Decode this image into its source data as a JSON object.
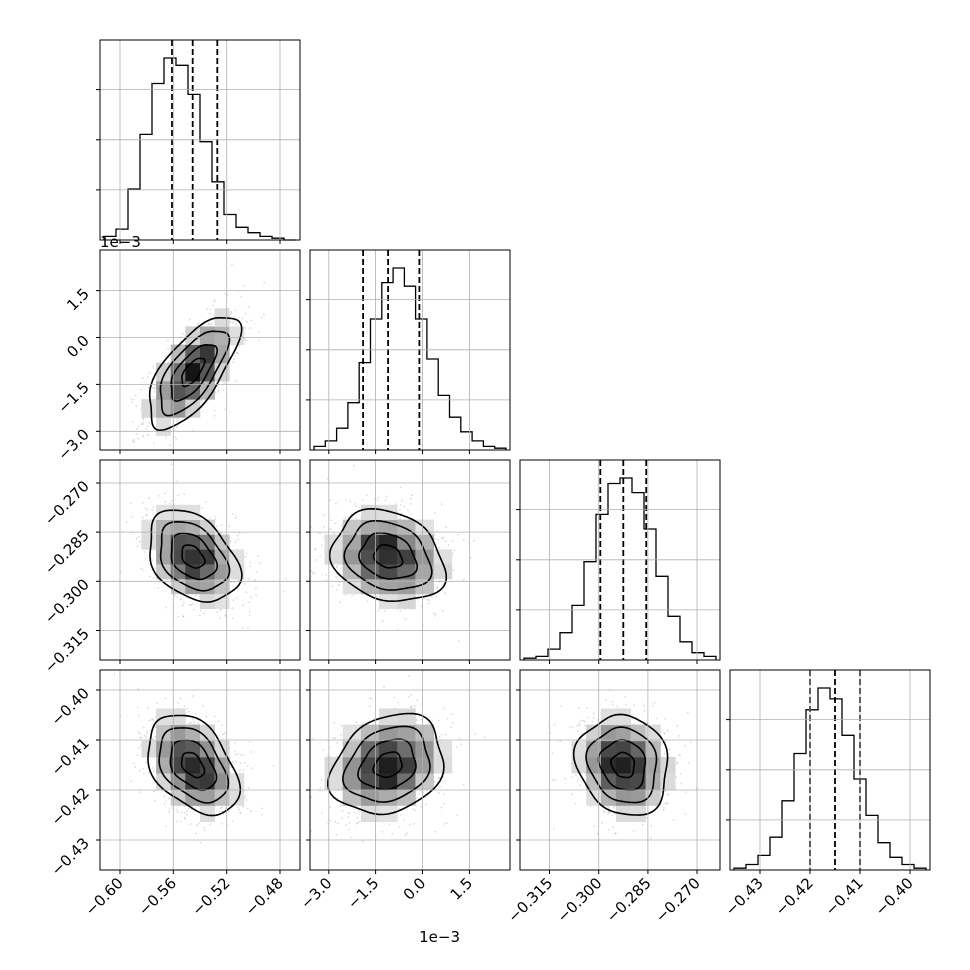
{
  "chart_data": {
    "type": "corner",
    "parameters": [
      {
        "range": [
          -0.615,
          -0.465
        ],
        "ticks": [
          -0.6,
          -0.56,
          -0.52,
          -0.48
        ],
        "tick_labels": [
          "−0.60",
          "−0.56",
          "−0.52",
          "−0.48"
        ],
        "offset_label": "",
        "median": -0.5455,
        "q16": -0.561,
        "q84": -0.527,
        "mean": -0.5455,
        "sd": 0.017
      },
      {
        "range": [
          -3.6,
          2.8
        ],
        "ticks": [
          -3.0,
          -1.5,
          0.0,
          1.5
        ],
        "tick_labels": [
          "−3.0",
          "−1.5",
          "0.0",
          "1.5"
        ],
        "offset_label": "1e−3",
        "median": -1.1,
        "q16": -1.9,
        "q84": -0.1,
        "mean": -1.1,
        "sd": 0.9
      },
      {
        "range": [
          -0.324,
          -0.263
        ],
        "ticks": [
          -0.315,
          -0.3,
          -0.285,
          -0.27
        ],
        "tick_labels": [
          "−0.315",
          "−0.300",
          "−0.285",
          "−0.270"
        ],
        "offset_label": "",
        "median": -0.2925,
        "q16": -0.2995,
        "q84": -0.2855,
        "mean": -0.2925,
        "sd": 0.007
      },
      {
        "range": [
          -0.436,
          -0.396
        ],
        "ticks": [
          -0.43,
          -0.42,
          -0.41,
          -0.4
        ],
        "tick_labels": [
          "−0.43",
          "−0.42",
          "−0.41",
          "−0.40"
        ],
        "offset_label": "",
        "median": -0.415,
        "q16": -0.42,
        "q84": -0.41,
        "mean": -0.415,
        "sd": 0.005
      }
    ],
    "correlations": [
      {
        "row": 1,
        "col": 0,
        "rho": 0.68
      },
      {
        "row": 2,
        "col": 0,
        "rho": -0.35
      },
      {
        "row": 2,
        "col": 1,
        "rho": -0.2
      },
      {
        "row": 3,
        "col": 0,
        "rho": -0.4
      },
      {
        "row": 3,
        "col": 1,
        "rho": 0.22
      },
      {
        "row": 3,
        "col": 2,
        "rho": -0.12
      }
    ],
    "histograms": [
      [
        0.02,
        0.06,
        0.28,
        0.58,
        0.86,
        1.0,
        0.96,
        0.8,
        0.54,
        0.32,
        0.14,
        0.07,
        0.04,
        0.02,
        0.01,
        0.0
      ],
      [
        0.02,
        0.05,
        0.12,
        0.26,
        0.48,
        0.72,
        0.92,
        1.0,
        0.9,
        0.72,
        0.5,
        0.3,
        0.18,
        0.1,
        0.05,
        0.02,
        0.01
      ],
      [
        0.01,
        0.02,
        0.06,
        0.15,
        0.3,
        0.54,
        0.8,
        0.97,
        1.0,
        0.92,
        0.72,
        0.46,
        0.24,
        0.1,
        0.04,
        0.02
      ],
      [
        0.01,
        0.03,
        0.08,
        0.18,
        0.38,
        0.64,
        0.88,
        1.0,
        0.94,
        0.74,
        0.5,
        0.3,
        0.15,
        0.07,
        0.03,
        0.01
      ]
    ],
    "contour_levels": [
      0.5,
      1.0,
      1.5,
      2.0
    ],
    "grid": true,
    "quantile_lines": "dashed"
  }
}
